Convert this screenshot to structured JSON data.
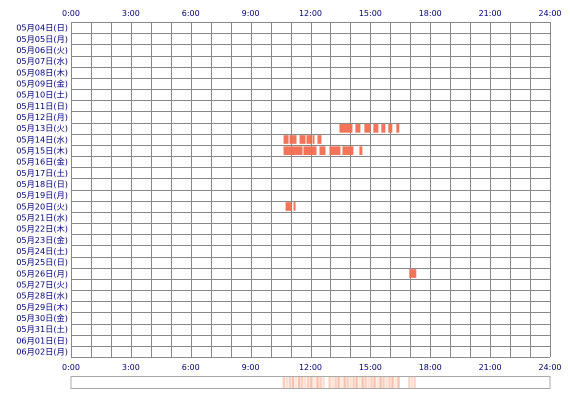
{
  "chart_data": {
    "type": "heatmap",
    "x_ticks": [
      "0:00",
      "3:00",
      "6:00",
      "9:00",
      "12:00",
      "15:00",
      "18:00",
      "21:00",
      "24:00"
    ],
    "xlim": [
      0,
      24
    ],
    "rows": [
      "05月04日(日)",
      "05月05日(月)",
      "05月06日(火)",
      "05月07日(水)",
      "05月08日(木)",
      "05月09日(金)",
      "05月10日(土)",
      "05月11日(日)",
      "05月12日(月)",
      "05月13日(火)",
      "05月14日(水)",
      "05月15日(木)",
      "05月16日(金)",
      "05月17日(土)",
      "05月18日(日)",
      "05月19日(月)",
      "05月20日(火)",
      "05月21日(水)",
      "05月22日(木)",
      "05月23日(金)",
      "05月24日(土)",
      "05月25日(日)",
      "05月26日(月)",
      "05月27日(火)",
      "05月28日(水)",
      "05月29日(木)",
      "05月30日(金)",
      "05月31日(土)",
      "06月01日(日)",
      "06月02日(月)"
    ],
    "grid": true,
    "colors": {
      "activity": "#f26d50",
      "activity_light": "#f7a68a",
      "grid": "#888888",
      "label": "#000080",
      "summary": "#fbd3bf"
    },
    "activity": [
      {
        "row": 9,
        "segments": [
          [
            13.45,
            14.1
          ],
          [
            14.25,
            14.5
          ],
          [
            14.7,
            15.0
          ],
          [
            15.15,
            15.4
          ],
          [
            15.55,
            15.75
          ],
          [
            15.9,
            16.1
          ],
          [
            16.3,
            16.45
          ]
        ]
      },
      {
        "row": 10,
        "segments": [
          [
            10.65,
            10.9
          ],
          [
            10.95,
            11.3
          ],
          [
            11.45,
            11.75
          ],
          [
            11.8,
            12.05
          ],
          [
            12.1,
            12.2
          ],
          [
            12.35,
            12.55
          ]
        ]
      },
      {
        "row": 11,
        "segments": [
          [
            10.65,
            10.9
          ],
          [
            10.9,
            11.6
          ],
          [
            11.65,
            12.3
          ],
          [
            12.45,
            12.75
          ],
          [
            12.95,
            13.5
          ],
          [
            13.6,
            14.15
          ],
          [
            14.45,
            14.6
          ]
        ]
      },
      {
        "row": 16,
        "segments": [
          [
            10.75,
            11.05
          ],
          [
            11.15,
            11.25
          ]
        ]
      },
      {
        "row": 22,
        "segments": [
          [
            16.95,
            17.3
          ]
        ]
      }
    ],
    "summary_segments": [
      [
        10.6,
        12.75
      ],
      [
        12.9,
        16.5
      ],
      [
        16.9,
        17.3
      ]
    ]
  }
}
